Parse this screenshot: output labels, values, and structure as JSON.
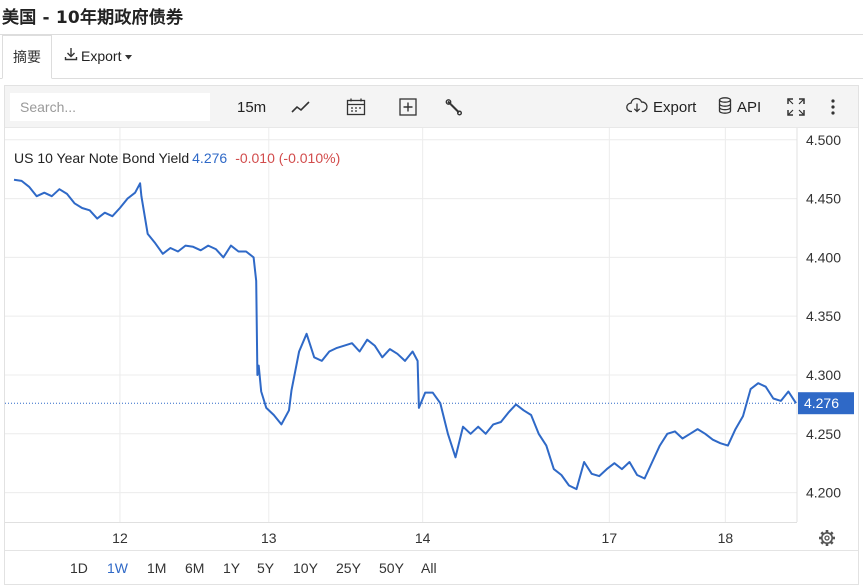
{
  "page": {
    "title": "美国 - 10年期政府债券"
  },
  "tabs": [
    {
      "label": "摘要"
    }
  ],
  "export_menu": {
    "label": "Export"
  },
  "toolbar": {
    "search_placeholder": "Search...",
    "interval": "15m",
    "export_label": "Export",
    "api_label": "API",
    "icons": [
      "line-chart-icon",
      "calendar-icon",
      "add-box-icon",
      "wrench-icon",
      "cloud-download-icon",
      "database-icon",
      "fullscreen-icon",
      "more-vertical-icon"
    ]
  },
  "legend": {
    "name": "US 10 Year Note Bond Yield",
    "value": "4.276",
    "change": "-0.010 (-0.010%)"
  },
  "current_price_label": "4.276",
  "range_buttons": [
    "1D",
    "1W",
    "1M",
    "6M",
    "1Y",
    "5Y",
    "10Y",
    "25Y",
    "50Y",
    "All"
  ],
  "active_range": "1W",
  "colors": {
    "line": "#2f69c7",
    "negative": "#d24c4c",
    "grid": "#ececec"
  },
  "chart_data": {
    "type": "line",
    "series": [
      {
        "name": "US 10 Year Note Bond Yield",
        "x": [
          0,
          0.3,
          0.6,
          0.9,
          1.2,
          1.5,
          1.8,
          2.1,
          2.4,
          2.7,
          3.0,
          3.3,
          3.6,
          3.9,
          4.2,
          4.5,
          4.8,
          5.0,
          5.05,
          5.3,
          5.6,
          5.9,
          6.2,
          6.5,
          6.8,
          7.1,
          7.4,
          7.7,
          8.0,
          8.3,
          8.6,
          8.9,
          9.2,
          9.5,
          9.6,
          9.65,
          9.7,
          9.8,
          10.0,
          10.3,
          10.6,
          10.9,
          11.0,
          11.3,
          11.6,
          11.9,
          12.2,
          12.5,
          12.8,
          13.1,
          13.4,
          13.7,
          14.0,
          14.3,
          14.6,
          14.9,
          15.2,
          15.5,
          15.8,
          16.0,
          16.05,
          16.3,
          16.6,
          16.9,
          17.2,
          17.5,
          17.8,
          18.1,
          18.4,
          18.7,
          19.0,
          19.3,
          19.6,
          19.9,
          20.2,
          20.5,
          20.8,
          21.1,
          21.4,
          21.7,
          22.0,
          22.3,
          22.6,
          22.9,
          23.2,
          23.5,
          23.8,
          24.1,
          24.4,
          24.7,
          25.0,
          25.3,
          25.6,
          25.9,
          26.2,
          26.5,
          26.8,
          27.1,
          27.4,
          27.7,
          28.0,
          28.3,
          28.6,
          28.9,
          29.2,
          29.5,
          29.8,
          30.1,
          30.4,
          30.7,
          31.0
        ],
        "y": [
          4.466,
          4.465,
          4.46,
          4.452,
          4.455,
          4.452,
          4.458,
          4.454,
          4.446,
          4.442,
          4.44,
          4.433,
          4.438,
          4.435,
          4.442,
          4.45,
          4.455,
          4.463,
          4.452,
          4.42,
          4.412,
          4.403,
          4.408,
          4.405,
          4.41,
          4.409,
          4.406,
          4.41,
          4.407,
          4.4,
          4.41,
          4.405,
          4.405,
          4.4,
          4.38,
          4.3,
          4.308,
          4.286,
          4.272,
          4.266,
          4.258,
          4.27,
          4.287,
          4.32,
          4.335,
          4.315,
          4.312,
          4.32,
          4.323,
          4.325,
          4.327,
          4.32,
          4.33,
          4.325,
          4.315,
          4.322,
          4.318,
          4.312,
          4.32,
          4.312,
          4.272,
          4.285,
          4.285,
          4.276,
          4.25,
          4.23,
          4.256,
          4.25,
          4.256,
          4.25,
          4.258,
          4.26,
          4.268,
          4.275,
          4.27,
          4.266,
          4.25,
          4.24,
          4.22,
          4.215,
          4.206,
          4.203,
          4.226,
          4.216,
          4.214,
          4.22,
          4.225,
          4.22,
          4.226,
          4.215,
          4.212,
          4.226,
          4.24,
          4.25,
          4.252,
          4.246,
          4.25,
          4.254,
          4.25,
          4.245,
          4.242,
          4.24,
          4.254,
          4.265,
          4.288,
          4.293,
          4.29,
          4.28,
          4.278,
          4.286,
          4.276
        ]
      }
    ],
    "xticks": [
      {
        "x": 4.2,
        "label": "12"
      },
      {
        "x": 10.1,
        "label": "13"
      },
      {
        "x": 16.2,
        "label": "14"
      },
      {
        "x": 23.6,
        "label": "17"
      },
      {
        "x": 28.2,
        "label": "18"
      }
    ],
    "yticks": [
      4.2,
      4.25,
      4.3,
      4.35,
      4.4,
      4.45,
      4.5
    ],
    "ylim": [
      4.175,
      4.51
    ],
    "xlim": [
      0,
      31
    ],
    "last_value": 4.276,
    "grid": true,
    "title": "",
    "xlabel": "",
    "ylabel": ""
  }
}
